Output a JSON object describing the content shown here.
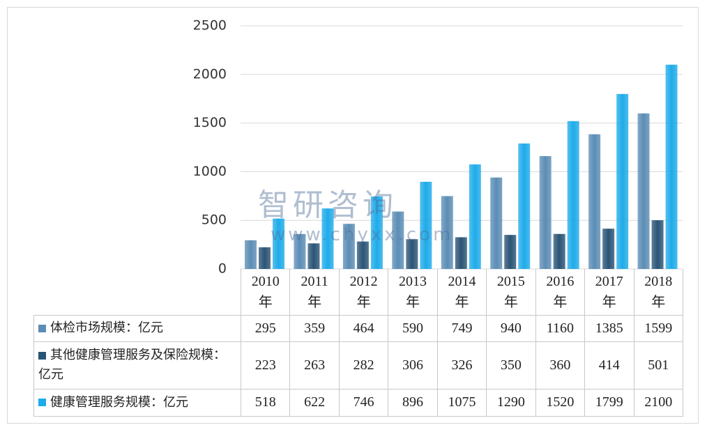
{
  "chart_data": {
    "type": "bar",
    "categories": [
      "2010年",
      "2011年",
      "2012年",
      "2013年",
      "2014年",
      "2015年",
      "2016年",
      "2017年",
      "2018年"
    ],
    "series": [
      {
        "name": "体检市场规模：亿元",
        "color": "#5b8db5",
        "values": [
          295,
          359,
          464,
          590,
          749,
          940,
          1160,
          1385,
          1599
        ]
      },
      {
        "name": "其他健康管理服务及保险规模：亿元",
        "color": "#2a5475",
        "values": [
          223,
          263,
          282,
          306,
          326,
          350,
          360,
          414,
          501
        ]
      },
      {
        "name": "健康管理服务规模：亿元",
        "color": "#1eabea",
        "values": [
          518,
          622,
          746,
          896,
          1075,
          1290,
          1520,
          1799,
          2100
        ]
      }
    ],
    "ylim": [
      0,
      2500
    ],
    "yticks": [
      0,
      500,
      1000,
      1500,
      2000,
      2500
    ],
    "grid": true,
    "watermark": {
      "brand": "智研咨询",
      "url": "www.chyxx.com"
    }
  }
}
